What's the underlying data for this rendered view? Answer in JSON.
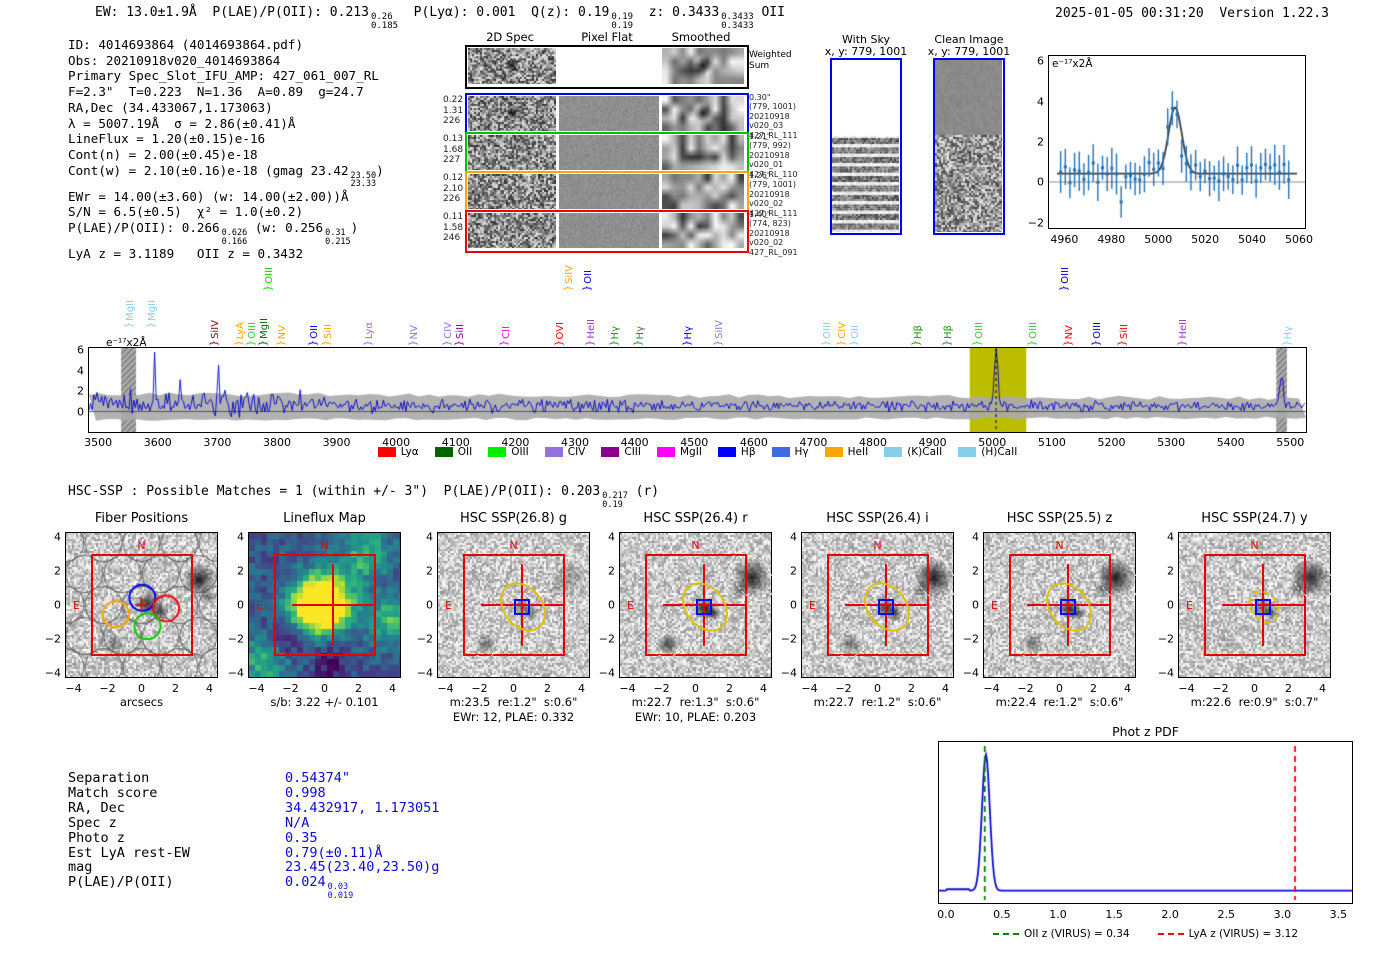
{
  "header": {
    "left_segments": [
      {
        "t": "EW: 13.0±1.9Å  P(LAE)/P(OII): 0.213"
      },
      {
        "sup": "0.26",
        "sub": "0.185"
      },
      {
        "t": "  P(Lyα): 0.001  Q(z): 0.19"
      },
      {
        "sup": "0.19",
        "sub": "0.19"
      },
      {
        "t": "  z: 0.3433"
      },
      {
        "sup": "0.3433",
        "sub": "0.3433"
      },
      {
        "t": " OII"
      }
    ],
    "right": "2025-01-05 00:31:20  Version 1.22.3"
  },
  "info_lines": [
    [
      {
        "t": "ID: 4014693864 (4014693864.pdf)"
      }
    ],
    [
      {
        "t": "Obs: 20210918v020_4014693864"
      }
    ],
    [
      {
        "t": "Primary Spec_Slot_IFU_AMP: 427_061_007_RL"
      }
    ],
    [
      {
        "t": "F=2.3\"  T=0.223  N=1.36  A=0.89  g=24.7"
      }
    ],
    [
      {
        "t": "RA,Dec (34.433067,1.173063)"
      }
    ],
    [
      {
        "t": "λ = 5007.19Å  σ = 2.86(±0.41)Å"
      }
    ],
    [
      {
        "t": "LineFlux = 1.20(±0.15)e-16"
      }
    ],
    [
      {
        "t": "Cont(n) = 2.00(±0.45)e-18"
      }
    ],
    [
      {
        "t": "Cont(w) = 2.10(±0.16)e-18 (gmag 23.42"
      },
      {
        "sup": "23.50",
        "sub": "23.33"
      },
      {
        "t": ")"
      }
    ],
    [
      {
        "t": "EWr = 14.00(±3.60) (w: 14.00(±2.00))Å"
      }
    ],
    [
      {
        "t": "S/N = 6.5(±0.5)  χ² = 1.0(±0.2)"
      }
    ],
    [
      {
        "t": "P(LAE)/P(OII): 0.266"
      },
      {
        "sup": "0.626",
        "sub": "0.166"
      },
      {
        "t": " (w: 0.256"
      },
      {
        "sup": "0.31",
        "sub": "0.215"
      },
      {
        "t": ")"
      }
    ],
    [
      {
        "t": "LyA z = 3.1189   OII z = 0.3432"
      }
    ]
  ],
  "spec2d": {
    "col_titles": [
      "2D Spec",
      "Pixel Flat",
      "Smoothed"
    ],
    "weighted_label": [
      "Weighted",
      "Sum"
    ],
    "rows": [
      {
        "border": "#0000ee",
        "left": [
          "0.22",
          "1.31",
          "226"
        ],
        "right": [
          "0.30\"",
          "(779, 1001)",
          "20210918",
          "v020_03",
          "427_RL_111"
        ],
        "spot": true
      },
      {
        "border": "#00c000",
        "left": [
          "0.13",
          "1.68",
          "227"
        ],
        "right": [
          "1.21\"",
          "(779, 992)",
          "20210918",
          "v020_01",
          "427_RL_110"
        ],
        "spot": false
      },
      {
        "border": "#ffa500",
        "left": [
          "0.12",
          "2.10",
          "226"
        ],
        "right": [
          "1.26\"",
          "(779, 1001)",
          "20210918",
          "v020_02",
          "427_RL_111"
        ],
        "spot": false
      },
      {
        "border": "#ee0000",
        "left": [
          "0.11",
          "1.58",
          "246"
        ],
        "right": [
          "1.40\"",
          "(774, 823)",
          "20210918",
          "v020_02",
          "427_RL_091"
        ],
        "spot": false
      }
    ]
  },
  "sky_panels": {
    "with_sky": {
      "title": "With Sky",
      "subtitle": "x, y: 779, 1001"
    },
    "clean": {
      "title": "Clean Image",
      "subtitle": "x, y: 779, 1001"
    }
  },
  "hsc_line_segments": [
    {
      "t": "HSC-SSP : Possible Matches = 1 (within +/- 3\")  P(LAE)/P(OII): 0.203"
    },
    {
      "sup": "0.217",
      "sub": "0.19"
    },
    {
      "t": " (r)"
    }
  ],
  "cutout_axes": {
    "xticks": [
      "−4",
      "−2",
      "0",
      "2",
      "4"
    ],
    "yticks": [
      "4",
      "2",
      "0",
      "−2",
      "−4"
    ],
    "compass_n": "N",
    "compass_e": "E"
  },
  "cutouts": [
    {
      "title": "Fiber Positions",
      "xlabel": "arcsecs",
      "type": "fiber"
    },
    {
      "title": "Lineflux Map",
      "xlabel": "s/b: 3.22 +/- 0.101",
      "type": "map"
    },
    {
      "title": "HSC SSP(26.8) g",
      "xlabel": "m:23.5  re:1.2\"  s:0.6\"",
      "xlabel2": "EWr: 12, PLAE: 0.332",
      "type": "img",
      "c": 0.5,
      "tr": 0.3,
      "bl": 0.5,
      "dbl": true,
      "dtr": false,
      "ydash": false
    },
    {
      "title": "HSC SSP(26.4) r",
      "xlabel": "m:22.7  re:1.3\"  s:0.6\"",
      "xlabel2": "EWr: 10, PLAE: 0.203",
      "type": "img",
      "c": 0.95,
      "tr": 0.85,
      "bl": 0.7,
      "dbl": true,
      "dtr": true,
      "ydash": false
    },
    {
      "title": "HSC SSP(26.4) i",
      "xlabel": "m:22.7  re:1.2\"  s:0.6\"",
      "type": "img",
      "c": 0.8,
      "tr": 0.9,
      "bl": 0.55,
      "dbl": true,
      "dtr": true,
      "ydash": false
    },
    {
      "title": "HSC SSP(25.5) z",
      "xlabel": "m:22.4  re:1.2\"  s:0.6\"",
      "type": "img",
      "c": 0.85,
      "tr": 0.9,
      "bl": 0.5,
      "dbl": true,
      "dtr": true,
      "ydash": false
    },
    {
      "title": "HSC SSP(24.7) y",
      "xlabel": "m:22.6  re:0.9\"  s:0.7\"",
      "type": "img",
      "c": 0.6,
      "tr": 0.85,
      "bl": 0.15,
      "dbl": false,
      "dtr": true,
      "ydash": true
    }
  ],
  "match_table": {
    "rows": [
      {
        "label": "Separation",
        "value": [
          {
            "t": "0.54374\""
          }
        ]
      },
      {
        "label": "Match score",
        "value": [
          {
            "t": "0.998"
          }
        ]
      },
      {
        "label": "RA, Dec",
        "value": [
          {
            "t": "34.432917, 1.173051"
          }
        ]
      },
      {
        "label": "Spec z",
        "value": [
          {
            "t": "N/A"
          }
        ]
      },
      {
        "label": "Photo z",
        "value": [
          {
            "t": "0.35"
          }
        ]
      },
      {
        "label": "Est LyA rest-EW",
        "value": [
          {
            "t": "0.79(±0.11)Å"
          }
        ]
      },
      {
        "label": "mag",
        "value": [
          {
            "t": "23.45(23.40,23.50)g"
          }
        ]
      },
      {
        "label": "P(LAE)/P(OII)",
        "value": [
          {
            "t": "0.024"
          },
          {
            "sup": "0.03",
            "sub": "0.019"
          }
        ]
      }
    ]
  },
  "chart_data": [
    {
      "id": "line_fit_zoom",
      "type": "line",
      "inplot_label": "e⁻¹⁷x2Å",
      "x_range": [
        4953,
        5063
      ],
      "y_range": [
        -2.3,
        6.3
      ],
      "xticks": [
        "4960",
        "4980",
        "5000",
        "5020",
        "5040",
        "5060"
      ],
      "yticks": [
        "−2",
        "0",
        "2",
        "4",
        "6"
      ],
      "series": [
        {
          "name": "flux_points",
          "style": "errorbar",
          "color": "#2270b5",
          "desc": "flux every ~2Å, baseline ≈0.4±0.6, max point ≈5.2 at 5005Å, errors ≈±0.8"
        },
        {
          "name": "gaussian_fit",
          "style": "line",
          "color": "#3c3c3c",
          "center": 5007.19,
          "sigma": 2.86,
          "amplitude": 3.3,
          "baseline": 0.42
        }
      ]
    },
    {
      "id": "full_spectrum",
      "type": "line",
      "inplot_label": "e⁻¹⁷x2Å",
      "x_range": [
        3483,
        5528
      ],
      "y_range": [
        -2.0,
        6.2
      ],
      "xticks": [
        3500,
        3600,
        3700,
        3800,
        3900,
        4000,
        4100,
        4200,
        4300,
        4400,
        4500,
        4600,
        4700,
        4800,
        4900,
        5000,
        5100,
        5200,
        5300,
        5400,
        5500
      ],
      "yticks": [
        "0",
        "2",
        "4",
        "6"
      ],
      "line_color": "#0000cc",
      "error_band": "gray ±1σ band ≈ −0.8 .. +1.8",
      "main_peak": {
        "wavelength": 5007.19,
        "height": 6.0
      },
      "highlight_band": [
        4963,
        5058
      ],
      "dashed_marker": 5007.19,
      "hatched_bands": [
        [
          3537,
          3562
        ],
        [
          5478,
          5496
        ]
      ],
      "legend": [
        {
          "label": "Lyα",
          "color": "#ff0000"
        },
        {
          "label": "OII",
          "color": "#006400"
        },
        {
          "label": "OIII",
          "color": "#00ee00"
        },
        {
          "label": "CIV",
          "color": "#9370db"
        },
        {
          "label": "CIII",
          "color": "#8b008b"
        },
        {
          "label": "MgII",
          "color": "#ff00ff"
        },
        {
          "label": "Hβ",
          "color": "#0000ff"
        },
        {
          "label": "Hγ",
          "color": "#4169e1"
        },
        {
          "label": "HeII",
          "color": "#ffa500"
        },
        {
          "label": "(K)CaII",
          "color": "#87ceeb"
        },
        {
          "label": "(H)CaII",
          "color": "#87ceeb"
        }
      ],
      "line_labels": [
        {
          "text": "MgII",
          "color": "#87ceeb",
          "fx": 0.037,
          "rise": 18
        },
        {
          "text": "MgII",
          "color": "#87ceeb",
          "fx": 0.055,
          "rise": 18
        },
        {
          "text": "SiIV",
          "color": "#8b0000",
          "fx": 0.107,
          "rise": 0
        },
        {
          "text": "LyA",
          "color": "#ffa500",
          "fx": 0.127,
          "rise": 0
        },
        {
          "text": "OIII",
          "color": "#32cd32",
          "fx": 0.137,
          "rise": 0
        },
        {
          "text": "MgII",
          "color": "#006400",
          "fx": 0.147,
          "rise": 0
        },
        {
          "text": "OIII",
          "color": "#00dd00",
          "fx": 0.151,
          "rise": 55
        },
        {
          "text": "NV",
          "color": "#ffa500",
          "fx": 0.162,
          "rise": 0
        },
        {
          "text": "OII",
          "color": "#0000ff",
          "fx": 0.188,
          "rise": 0
        },
        {
          "text": "SiII",
          "color": "#ffa500",
          "fx": 0.199,
          "rise": 0
        },
        {
          "text": "Lyα",
          "color": "#9370db",
          "fx": 0.233,
          "rise": 0
        },
        {
          "text": "NV",
          "color": "#9370db",
          "fx": 0.27,
          "rise": 0
        },
        {
          "text": "CIV",
          "color": "#9370db",
          "fx": 0.298,
          "rise": 0
        },
        {
          "text": "SiII",
          "color": "#8b008b",
          "fx": 0.308,
          "rise": 0
        },
        {
          "text": "CII",
          "color": "#ff00ff",
          "fx": 0.345,
          "rise": 0
        },
        {
          "text": "OVI",
          "color": "#ff0000",
          "fx": 0.39,
          "rise": 0
        },
        {
          "text": "SiIV",
          "color": "#ffa500",
          "fx": 0.397,
          "rise": 55
        },
        {
          "text": "OII",
          "color": "#0000ff",
          "fx": 0.413,
          "rise": 55
        },
        {
          "text": "HeII",
          "color": "#9932cc",
          "fx": 0.415,
          "rise": 0
        },
        {
          "text": "Hγ",
          "color": "#228b22",
          "fx": 0.435,
          "rise": 0
        },
        {
          "text": "Hγ",
          "color": "#228b22",
          "fx": 0.455,
          "rise": 0
        },
        {
          "text": "Hγ",
          "color": "#0000ff",
          "fx": 0.495,
          "rise": 0
        },
        {
          "text": "SiIV",
          "color": "#9370db",
          "fx": 0.52,
          "rise": 0
        },
        {
          "text": "OIII",
          "color": "#87ceeb",
          "fx": 0.609,
          "rise": 0
        },
        {
          "text": "CIV",
          "color": "#ffa500",
          "fx": 0.621,
          "rise": 0
        },
        {
          "text": "OII",
          "color": "#87ceeb",
          "fx": 0.632,
          "rise": 0
        },
        {
          "text": "Hβ",
          "color": "#228b22",
          "fx": 0.683,
          "rise": 0
        },
        {
          "text": "Hβ",
          "color": "#228b22",
          "fx": 0.708,
          "rise": 0
        },
        {
          "text": "OIII",
          "color": "#32cd32",
          "fx": 0.733,
          "rise": 0
        },
        {
          "text": "OIII",
          "color": "#32cd32",
          "fx": 0.778,
          "rise": 0
        },
        {
          "text": "OIII",
          "color": "#0000cd",
          "fx": 0.804,
          "rise": 55
        },
        {
          "text": "NV",
          "color": "#ff0000",
          "fx": 0.807,
          "rise": 0
        },
        {
          "text": "OIII",
          "color": "#0000cd",
          "fx": 0.83,
          "rise": 0
        },
        {
          "text": "SiII",
          "color": "#ff0000",
          "fx": 0.852,
          "rise": 0
        },
        {
          "text": "HeII",
          "color": "#9932cc",
          "fx": 0.901,
          "rise": 0
        },
        {
          "text": "Hγ",
          "color": "#87ceeb",
          "fx": 0.987,
          "rise": 0
        }
      ]
    },
    {
      "id": "photz_pdf",
      "type": "line",
      "title": "Phot z PDF",
      "x_range": [
        -0.07,
        3.63
      ],
      "xticks": [
        "0.0",
        "0.5",
        "1.0",
        "1.5",
        "2.0",
        "2.5",
        "3.0",
        "3.5"
      ],
      "curve": {
        "baseline": 0.025,
        "peak_center": 0.35,
        "peak_sigma": 0.035,
        "peak_height": 1.0,
        "color": "#0b0bd0"
      },
      "vlines": [
        {
          "x": 0.34,
          "color": "#008000",
          "label": "OII z (VIRUS) = 0.34"
        },
        {
          "x": 3.12,
          "color": "#ff0000",
          "label": "LyA z (VIRUS) = 3.12"
        }
      ]
    }
  ]
}
